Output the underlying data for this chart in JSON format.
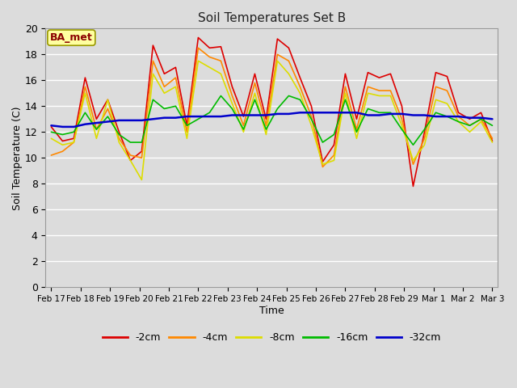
{
  "title": "Soil Temperatures Set B",
  "xlabel": "Time",
  "ylabel": "Soil Temperature (C)",
  "annotation": "BA_met",
  "ylim": [
    0,
    20
  ],
  "yticks": [
    0,
    2,
    4,
    6,
    8,
    10,
    12,
    14,
    16,
    18,
    20
  ],
  "background_color": "#dcdcdc",
  "xtick_labels": [
    "Feb 17",
    "Feb 18",
    "Feb 19",
    "Feb 20",
    "Feb 21",
    "Feb 22",
    "Feb 23",
    "Feb 24",
    "Feb 25",
    "Feb 26",
    "Feb 27",
    "Feb 28",
    "Feb 29",
    "Mar 1",
    "Mar 2",
    "Mar 3"
  ],
  "series": {
    "-2cm": [
      12.4,
      11.3,
      11.5,
      16.2,
      13.0,
      14.5,
      12.0,
      9.8,
      10.5,
      18.7,
      16.5,
      17.0,
      12.5,
      19.3,
      18.5,
      18.6,
      15.5,
      13.2,
      16.5,
      13.0,
      19.2,
      18.5,
      16.2,
      14.0,
      9.7,
      11.0,
      16.5,
      13.0,
      16.6,
      16.2,
      16.5,
      14.0,
      7.8,
      12.0,
      16.6,
      16.3,
      13.5,
      13.0,
      13.5,
      11.3
    ],
    "-4cm": [
      10.2,
      10.5,
      11.2,
      15.5,
      12.2,
      13.8,
      11.5,
      10.2,
      10.0,
      17.5,
      15.5,
      16.2,
      12.0,
      18.5,
      17.8,
      17.5,
      14.8,
      12.5,
      15.8,
      12.5,
      18.0,
      17.5,
      15.5,
      13.2,
      9.3,
      10.2,
      15.5,
      12.2,
      15.5,
      15.2,
      15.2,
      13.0,
      9.5,
      11.5,
      15.5,
      15.2,
      13.2,
      12.5,
      13.0,
      11.5
    ],
    "-8cm": [
      11.5,
      11.0,
      11.2,
      15.0,
      11.5,
      14.5,
      11.2,
      9.8,
      8.3,
      16.5,
      15.0,
      15.5,
      11.5,
      17.5,
      17.0,
      16.5,
      14.2,
      12.0,
      15.0,
      11.8,
      17.5,
      16.5,
      15.0,
      12.5,
      9.5,
      9.8,
      15.0,
      11.5,
      15.0,
      14.8,
      14.8,
      12.5,
      9.8,
      11.0,
      14.5,
      14.2,
      12.8,
      12.0,
      12.8,
      11.2
    ],
    "-16cm": [
      12.0,
      11.8,
      12.0,
      13.5,
      12.2,
      13.2,
      11.8,
      11.2,
      11.2,
      14.5,
      13.8,
      14.0,
      12.5,
      13.0,
      13.5,
      14.8,
      13.8,
      12.2,
      14.5,
      12.2,
      13.8,
      14.8,
      14.5,
      13.0,
      11.2,
      11.8,
      14.5,
      12.0,
      13.8,
      13.5,
      13.5,
      12.2,
      11.0,
      12.2,
      13.5,
      13.2,
      12.8,
      12.5,
      13.0,
      12.5
    ],
    "-32cm": [
      12.5,
      12.4,
      12.4,
      12.6,
      12.7,
      12.8,
      12.9,
      12.9,
      12.9,
      13.0,
      13.1,
      13.1,
      13.2,
      13.2,
      13.2,
      13.2,
      13.3,
      13.3,
      13.3,
      13.3,
      13.4,
      13.4,
      13.5,
      13.5,
      13.5,
      13.5,
      13.5,
      13.5,
      13.3,
      13.3,
      13.4,
      13.4,
      13.3,
      13.3,
      13.2,
      13.2,
      13.2,
      13.1,
      13.1,
      13.0
    ]
  },
  "colors": {
    "-2cm": "#dd0000",
    "-4cm": "#ff8800",
    "-8cm": "#dddd00",
    "-16cm": "#00bb00",
    "-32cm": "#0000cc"
  },
  "linewidths": {
    "-2cm": 1.2,
    "-4cm": 1.2,
    "-8cm": 1.2,
    "-16cm": 1.2,
    "-32cm": 1.8
  },
  "n_days": 16,
  "figsize": [
    6.4,
    4.8
  ],
  "dpi": 100
}
